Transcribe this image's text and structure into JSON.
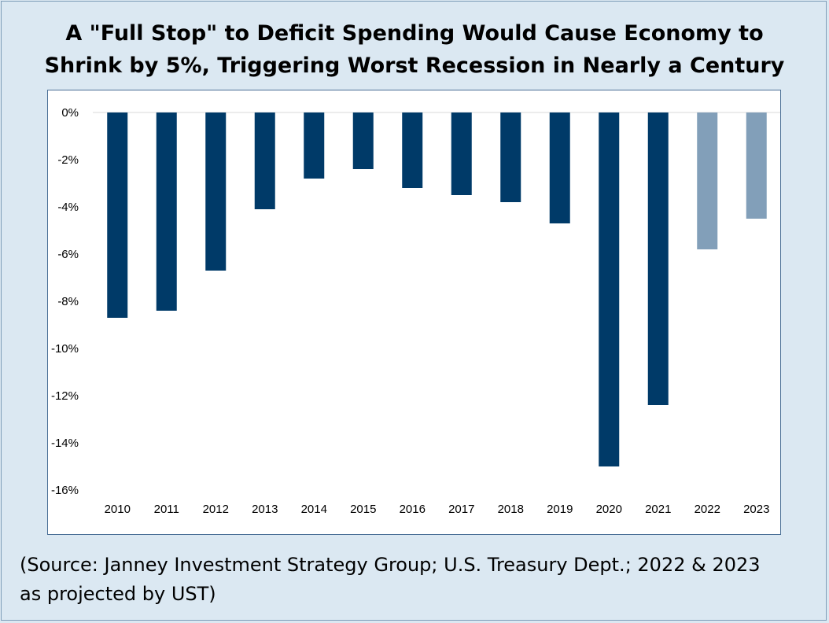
{
  "chart_data": {
    "type": "bar",
    "title_line1": "A \"Full Stop\" to Deficit Spending Would Cause Economy to",
    "title_line2": "Shrink by 5%, Triggering Worst Recession in Nearly a Century",
    "categories": [
      "2010",
      "2011",
      "2012",
      "2013",
      "2014",
      "2015",
      "2016",
      "2017",
      "2018",
      "2019",
      "2020",
      "2021",
      "2022",
      "2023"
    ],
    "values": [
      -8.7,
      -8.4,
      -6.7,
      -4.1,
      -2.8,
      -2.4,
      -3.2,
      -3.5,
      -3.8,
      -4.7,
      -15.0,
      -12.4,
      -5.8,
      -4.5
    ],
    "projected": [
      false,
      false,
      false,
      false,
      false,
      false,
      false,
      false,
      false,
      false,
      false,
      false,
      true,
      true
    ],
    "ylim": [
      -16,
      0
    ],
    "yticks": [
      0,
      -2,
      -4,
      -6,
      -8,
      -10,
      -12,
      -14,
      -16
    ],
    "ytick_labels": [
      "0%",
      "-2%",
      "-4%",
      "-6%",
      "-8%",
      "-10%",
      "-12%",
      "-14%",
      "-16%"
    ],
    "xlabel": "",
    "ylabel": "",
    "colors": {
      "actual": "#003a68",
      "projected": "#829fb9",
      "baseline": "#d9d9d9"
    },
    "source_line1": "(Source: Janney Investment Strategy Group; U.S. Treasury Dept.; 2022 & 2023",
    "source_line2": "as projected by UST)"
  }
}
